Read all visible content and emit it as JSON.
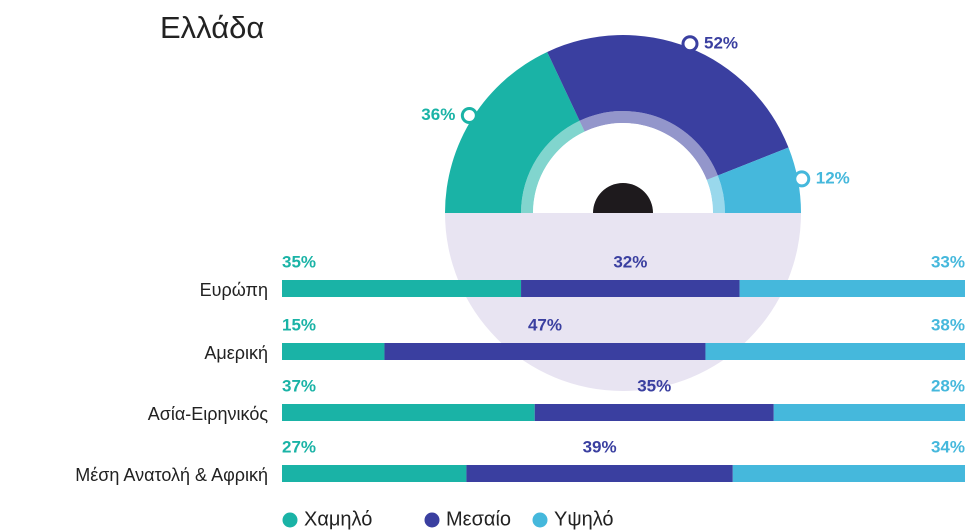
{
  "chart_data": [
    {
      "type": "pie",
      "title": "Ελλάδα",
      "values": [
        36,
        52,
        12
      ],
      "value_labels": [
        "36%",
        "52%",
        "12%"
      ],
      "colors": [
        "#1ab3a6",
        "#3a3fa0",
        "#45b8dc"
      ]
    },
    {
      "type": "bar",
      "categories": [
        "Ευρώπη",
        "Αμερική",
        "Ασία-Ειρηνικός",
        "Μέση Ανατολή & Αφρική"
      ],
      "series": [
        {
          "name": "Χαμηλό",
          "color": "#1ab3a6",
          "values": [
            35,
            15,
            37,
            27
          ],
          "value_labels": [
            "35%",
            "15%",
            "37%",
            "27%"
          ]
        },
        {
          "name": "Μεσαίο",
          "color": "#3a3fa0",
          "values": [
            32,
            47,
            35,
            39
          ],
          "value_labels": [
            "32%",
            "47%",
            "35%",
            "39%"
          ]
        },
        {
          "name": "Υψηλό",
          "color": "#45b8dc",
          "values": [
            33,
            38,
            28,
            34
          ],
          "value_labels": [
            "33%",
            "38%",
            "28%",
            "34%"
          ]
        }
      ]
    }
  ]
}
